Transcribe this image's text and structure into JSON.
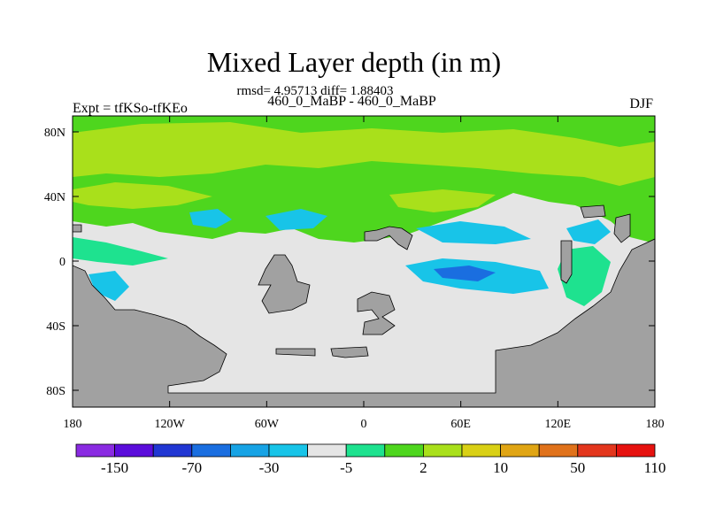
{
  "title": "Mixed Layer depth (in m)",
  "stats": "rmsd= 4.95713 diff= 1.88403",
  "subtitle": "460_0_MaBP - 460_0_MaBP",
  "left_label": "Expt = tfKSo-tfKEo",
  "right_label": "DJF",
  "map": {
    "type": "contour-map",
    "x_ticks": [
      "180",
      "120W",
      "60W",
      "0",
      "60E",
      "120E",
      "180"
    ],
    "y_ticks": [
      "80N",
      "40N",
      "0",
      "40S",
      "80S"
    ],
    "land_color": "#a1a1a1",
    "background_color": "#e5e5e5"
  },
  "colorbar": {
    "colors": [
      "#8a2be2",
      "#5b0ddb",
      "#2137d3",
      "#1a6ee0",
      "#17a3e5",
      "#18c4e8",
      "#e5e5e5",
      "#1ee28f",
      "#4ed61e",
      "#a9e01b",
      "#d9d015",
      "#e0a514",
      "#e0721b",
      "#e3361d",
      "#e6120f"
    ],
    "labels": [
      "-150",
      "-70",
      "-30",
      "-5",
      "2",
      "10",
      "50",
      "110"
    ]
  }
}
